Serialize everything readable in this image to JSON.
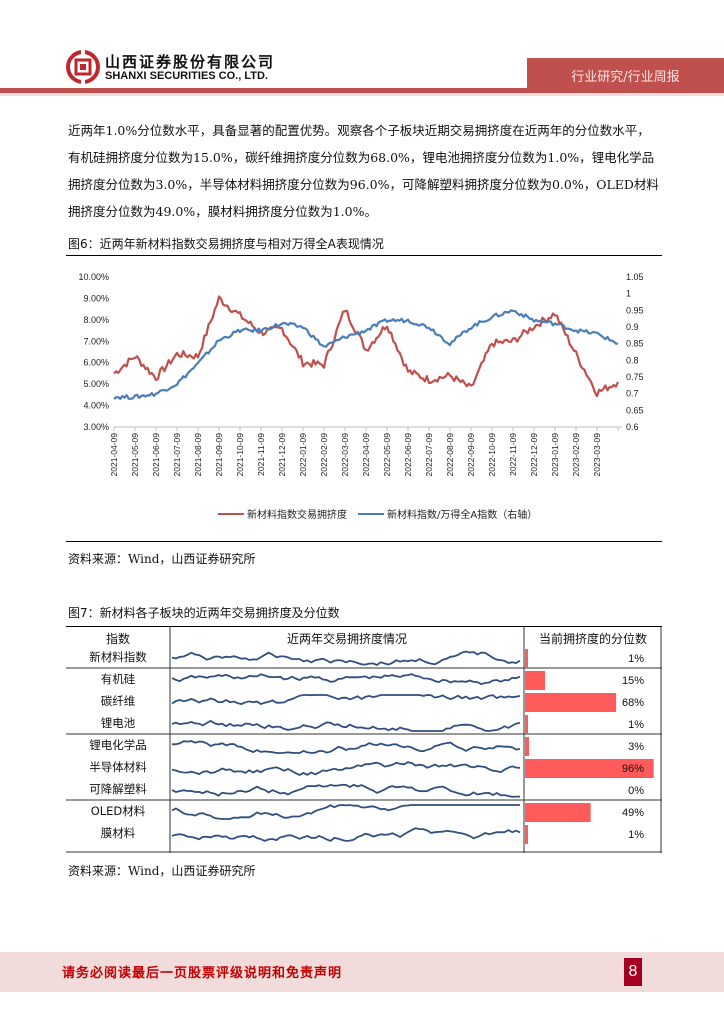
{
  "header": {
    "company_cn": "山西证券股份有限公司",
    "company_en": "SHANXI SECURITIES CO., LTD.",
    "section": "行业研究/行业周报",
    "brand_color": "#c0504d"
  },
  "paragraph": "近两年1.0%分位数水平，具备显著的配置优势。观察各个子板块近期交易拥挤度在近两年的分位数水平，有机硅拥挤度分位数为15.0%，碳纤维拥挤度分位数为68.0%，锂电池拥挤度分位数为1.0%，锂电化学品拥挤度分位数为3.0%，半导体材料拥挤度分位数为96.0%，可降解塑料拥挤度分位数为0.0%，OLED材料拥挤度分位数为49.0%，膜材料拥挤度分位数为1.0%。",
  "figure6": {
    "title": "图6：近两年新材料指数交易拥挤度与相对万得全A表现情况",
    "source": "资料来源：Wind，山西证券研究所"
  },
  "figure7": {
    "title": "图7：新材料各子板块的近两年交易拥挤度及分位数",
    "source": "资料来源：Wind，山西证券研究所",
    "headers": [
      "指数",
      "近两年交易拥挤度情况",
      "当前拥挤度的分位数"
    ],
    "rows": [
      {
        "name": "新材料指数",
        "pct": 1,
        "label": "1%"
      },
      {
        "name": "有机硅",
        "pct": 15,
        "label": "15%"
      },
      {
        "name": "碳纤维",
        "pct": 68,
        "label": "68%"
      },
      {
        "name": "锂电池",
        "pct": 1,
        "label": "1%"
      },
      {
        "name": "锂电化学品",
        "pct": 3,
        "label": "3%"
      },
      {
        "name": "半导体材料",
        "pct": 96,
        "label": "96%"
      },
      {
        "name": "可降解塑料",
        "pct": 0,
        "label": "0%"
      },
      {
        "name": "OLED材料",
        "pct": 49,
        "label": "49%"
      },
      {
        "name": "膜材料",
        "pct": 1,
        "label": "1%"
      }
    ],
    "bar_color": "#ff5b5b",
    "spark_color": "#2f4f7f"
  },
  "footer": {
    "disclaimer": "请务必阅读最后一页股票评级说明和免责声明",
    "page_number": "8"
  },
  "chart_data": [
    {
      "type": "line",
      "title": "近两年新材料指数交易拥挤度与相对万得全A表现情况",
      "categories": [
        "2021-04-09",
        "2021-05-09",
        "2021-06-09",
        "2021-07-09",
        "2021-08-09",
        "2021-09-09",
        "2021-10-09",
        "2021-11-09",
        "2021-12-09",
        "2022-01-09",
        "2022-02-09",
        "2022-03-09",
        "2022-04-09",
        "2022-05-09",
        "2022-06-09",
        "2022-07-09",
        "2022-08-09",
        "2022-09-09",
        "2022-10-09",
        "2022-11-09",
        "2022-12-09",
        "2023-01-09",
        "2023-02-09",
        "2023-03-09",
        "2023-04-09"
      ],
      "series": [
        {
          "name": "新材料指数交易拥挤度",
          "axis": "left",
          "color": "#c0504d",
          "values": [
            5.5,
            6.3,
            5.3,
            6.4,
            6.3,
            9.0,
            8.2,
            7.4,
            7.6,
            6.0,
            5.9,
            8.5,
            6.6,
            7.8,
            5.6,
            5.2,
            5.4,
            4.8,
            6.9,
            7.0,
            7.7,
            8.3,
            6.4,
            4.6,
            5.1
          ]
        },
        {
          "name": "新材料指数/万得全A指数（右轴）",
          "axis": "right",
          "color": "#4a7ebb",
          "values": [
            0.69,
            0.69,
            0.7,
            0.73,
            0.79,
            0.86,
            0.89,
            0.89,
            0.91,
            0.9,
            0.84,
            0.87,
            0.89,
            0.92,
            0.92,
            0.9,
            0.85,
            0.9,
            0.93,
            0.95,
            0.92,
            0.91,
            0.89,
            0.88,
            0.85
          ]
        }
      ],
      "yleft": {
        "min": 3.0,
        "max": 10.0,
        "ticks": [
          "3.00%",
          "4.00%",
          "5.00%",
          "6.00%",
          "7.00%",
          "8.00%",
          "9.00%",
          "10.00%"
        ]
      },
      "yright": {
        "min": 0.6,
        "max": 1.05,
        "ticks": [
          "0.6",
          "0.65",
          "0.7",
          "0.75",
          "0.8",
          "0.85",
          "0.9",
          "0.95",
          "1",
          "1.05"
        ]
      },
      "legend": [
        "新材料指数交易拥挤度",
        "新材料指数/万得全A指数（右轴）"
      ],
      "legend_position": "bottom",
      "grid": false
    },
    {
      "type": "bar",
      "title": "新材料各子板块的近两年交易拥挤度及分位数",
      "categories": [
        "新材料指数",
        "有机硅",
        "碳纤维",
        "锂电池",
        "锂电化学品",
        "半导体材料",
        "可降解塑料",
        "OLED材料",
        "膜材料"
      ],
      "values": [
        1,
        15,
        68,
        1,
        3,
        96,
        0,
        49,
        1
      ],
      "ylabel": "当前拥挤度的分位数 (%)"
    }
  ]
}
